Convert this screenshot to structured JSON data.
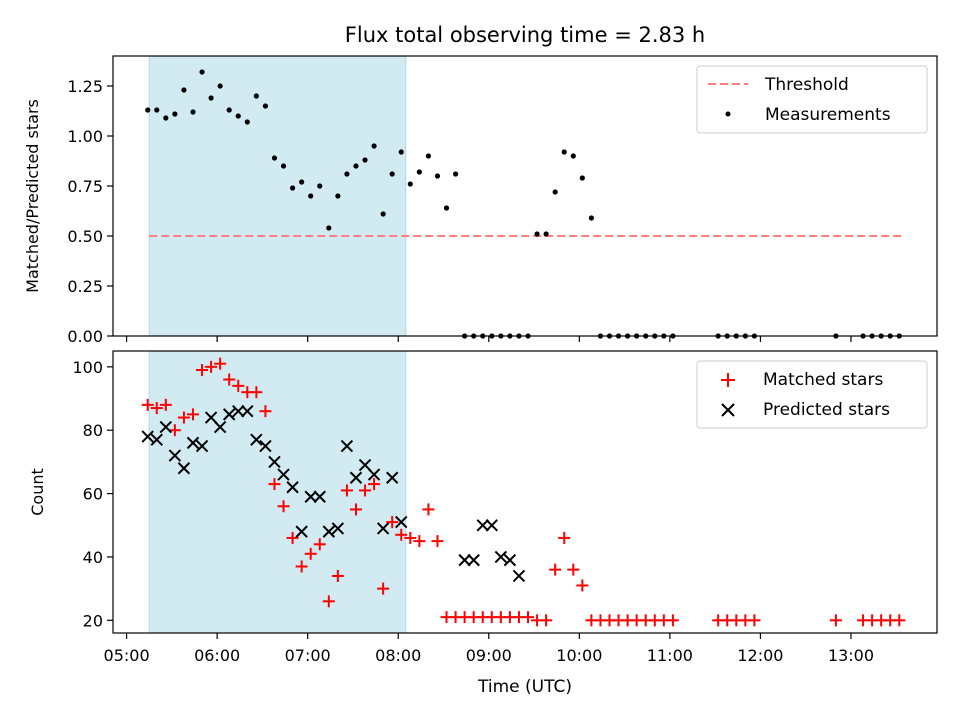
{
  "title": "Flux total observing time = 2.83 h",
  "colors": {
    "shade": "#add8e6",
    "threshold": "#ff7f7f",
    "measurements": "#000000",
    "matched": "#ff0000",
    "predicted": "#000000"
  },
  "chart_data": [
    {
      "type": "scatter",
      "ylabel": "Matched/Predicted stars",
      "xlim_hours": [
        4.85,
        13.95
      ],
      "ylim": [
        0,
        1.4
      ],
      "yticks": [
        0.0,
        0.25,
        0.5,
        0.75,
        1.0,
        1.25
      ],
      "ytick_labels": [
        "0.00",
        "0.25",
        "0.50",
        "0.75",
        "1.00",
        "1.25"
      ],
      "shaded_span": [
        "05:15",
        "08:05"
      ],
      "threshold": {
        "name": "Threshold",
        "y": 0.5,
        "x": [
          "05:15",
          "13:35"
        ],
        "style": "dashed"
      },
      "legend": {
        "position": "upper right",
        "entries": [
          "Threshold",
          "Measurements"
        ]
      },
      "series": [
        {
          "name": "Measurements",
          "marker": "dot",
          "x": [
            "05:14",
            "05:20",
            "05:26",
            "05:32",
            "05:38",
            "05:44",
            "05:50",
            "05:56",
            "06:02",
            "06:08",
            "06:14",
            "06:20",
            "06:26",
            "06:32",
            "06:38",
            "06:44",
            "06:50",
            "06:56",
            "07:02",
            "07:08",
            "07:14",
            "07:20",
            "07:26",
            "07:32",
            "07:38",
            "07:44",
            "07:50",
            "07:56",
            "08:02",
            "08:08",
            "08:14",
            "08:20",
            "08:26",
            "08:32",
            "08:38",
            "08:44",
            "08:50",
            "08:56",
            "09:02",
            "09:08",
            "09:14",
            "09:20",
            "09:26",
            "09:32",
            "09:38",
            "09:44",
            "09:50",
            "09:56",
            "10:02",
            "10:08",
            "10:14",
            "10:20",
            "10:26",
            "10:32",
            "10:38",
            "10:44",
            "10:50",
            "10:56",
            "11:02",
            "11:32",
            "11:38",
            "11:44",
            "11:50",
            "11:56",
            "12:50",
            "13:08",
            "13:14",
            "13:20",
            "13:26",
            "13:32"
          ],
          "y": [
            1.13,
            1.13,
            1.09,
            1.11,
            1.23,
            1.12,
            1.32,
            1.19,
            1.25,
            1.13,
            1.1,
            1.07,
            1.2,
            1.15,
            0.89,
            0.85,
            0.74,
            0.77,
            0.7,
            0.75,
            0.54,
            0.7,
            0.81,
            0.85,
            0.88,
            0.95,
            0.61,
            0.81,
            0.92,
            0.76,
            0.82,
            0.9,
            0.8,
            0.64,
            0.81,
            0.0,
            0.0,
            0.0,
            0.0,
            0.0,
            0.0,
            0.0,
            0.0,
            0.51,
            0.51,
            0.72,
            0.92,
            0.9,
            0.79,
            0.59,
            0.0,
            0.0,
            0.0,
            0.0,
            0.0,
            0.0,
            0.0,
            0.0,
            0.0,
            0.0,
            0.0,
            0.0,
            0.0,
            0.0,
            0.0,
            0.0,
            0.0,
            0.0,
            0.0,
            0.0
          ]
        }
      ]
    },
    {
      "type": "scatter",
      "xlabel": "Time (UTC)",
      "ylabel": "Count",
      "xlim_hours": [
        4.85,
        13.95
      ],
      "ylim": [
        16,
        105
      ],
      "yticks": [
        20,
        40,
        60,
        80,
        100
      ],
      "ytick_labels": [
        "20",
        "40",
        "60",
        "80",
        "100"
      ],
      "xticks": [
        "05:00",
        "06:00",
        "07:00",
        "08:00",
        "09:00",
        "10:00",
        "11:00",
        "12:00",
        "13:00"
      ],
      "shaded_span": [
        "05:15",
        "08:05"
      ],
      "legend": {
        "position": "upper right",
        "entries": [
          "Matched stars",
          "Predicted stars"
        ]
      },
      "series": [
        {
          "name": "Matched stars",
          "marker": "plus",
          "x": [
            "05:14",
            "05:20",
            "05:26",
            "05:32",
            "05:38",
            "05:44",
            "05:50",
            "05:56",
            "06:02",
            "06:08",
            "06:14",
            "06:20",
            "06:26",
            "06:32",
            "06:38",
            "06:44",
            "06:50",
            "06:56",
            "07:02",
            "07:08",
            "07:14",
            "07:20",
            "07:26",
            "07:32",
            "07:38",
            "07:44",
            "07:50",
            "07:56",
            "08:02",
            "08:08",
            "08:14",
            "08:20",
            "08:26",
            "08:32",
            "08:38",
            "08:44",
            "08:50",
            "08:56",
            "09:02",
            "09:08",
            "09:14",
            "09:20",
            "09:26",
            "09:32",
            "09:38",
            "09:44",
            "09:50",
            "09:56",
            "10:02",
            "10:08",
            "10:14",
            "10:20",
            "10:26",
            "10:32",
            "10:38",
            "10:44",
            "10:50",
            "10:56",
            "11:02",
            "11:32",
            "11:38",
            "11:44",
            "11:50",
            "11:56",
            "12:50",
            "13:08",
            "13:14",
            "13:20",
            "13:26",
            "13:32"
          ],
          "y": [
            88,
            87,
            88,
            80,
            84,
            85,
            99,
            100,
            101,
            96,
            94,
            92,
            92,
            86,
            63,
            56,
            46,
            37,
            41,
            44,
            26,
            34,
            61,
            55,
            61,
            63,
            30,
            51,
            47,
            46,
            45,
            55,
            45,
            21,
            21,
            21,
            21,
            21,
            21,
            21,
            21,
            21,
            21,
            20,
            20,
            36,
            46,
            36,
            31,
            20,
            20,
            20,
            20,
            20,
            20,
            20,
            20,
            20,
            20,
            20,
            20,
            20,
            20,
            20,
            20,
            20,
            20,
            20,
            20,
            20
          ]
        },
        {
          "name": "Predicted stars",
          "marker": "x",
          "x": [
            "05:14",
            "05:20",
            "05:26",
            "05:32",
            "05:38",
            "05:44",
            "05:50",
            "05:56",
            "06:02",
            "06:08",
            "06:14",
            "06:20",
            "06:26",
            "06:32",
            "06:38",
            "06:44",
            "06:50",
            "06:56",
            "07:02",
            "07:08",
            "07:14",
            "07:20",
            "07:26",
            "07:32",
            "07:38",
            "07:44",
            "07:50",
            "07:56",
            "08:02",
            "08:44",
            "08:50",
            "08:56",
            "09:02",
            "09:08",
            "09:14",
            "09:20"
          ],
          "y": [
            78,
            77,
            81,
            72,
            68,
            76,
            75,
            84,
            81,
            85,
            86,
            86,
            77,
            75,
            70,
            66,
            62,
            48,
            59,
            59,
            48,
            49,
            75,
            65,
            69,
            66,
            49,
            65,
            51,
            39,
            39,
            50,
            50,
            40,
            39,
            34
          ]
        }
      ]
    }
  ]
}
